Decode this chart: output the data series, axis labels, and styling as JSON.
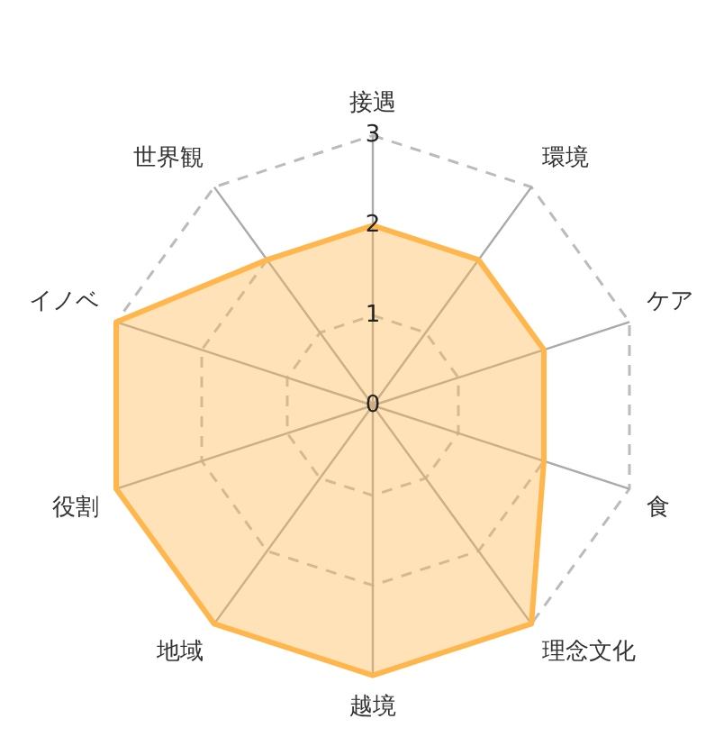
{
  "chart_data": {
    "type": "radar",
    "categories": [
      "接遇",
      "環境",
      "ケア",
      "食",
      "理念文化",
      "越境",
      "地域",
      "役割",
      "イノベ",
      "世界観"
    ],
    "series": [
      {
        "color": "#ffb74d",
        "values": [
          2,
          2,
          2,
          2,
          3,
          3,
          3,
          3,
          3,
          2
        ]
      }
    ],
    "ylim": [
      0,
      3
    ],
    "yticks": [
      0,
      1,
      2,
      3
    ],
    "grid": true,
    "marker": "none",
    "line_style": "solid"
  }
}
